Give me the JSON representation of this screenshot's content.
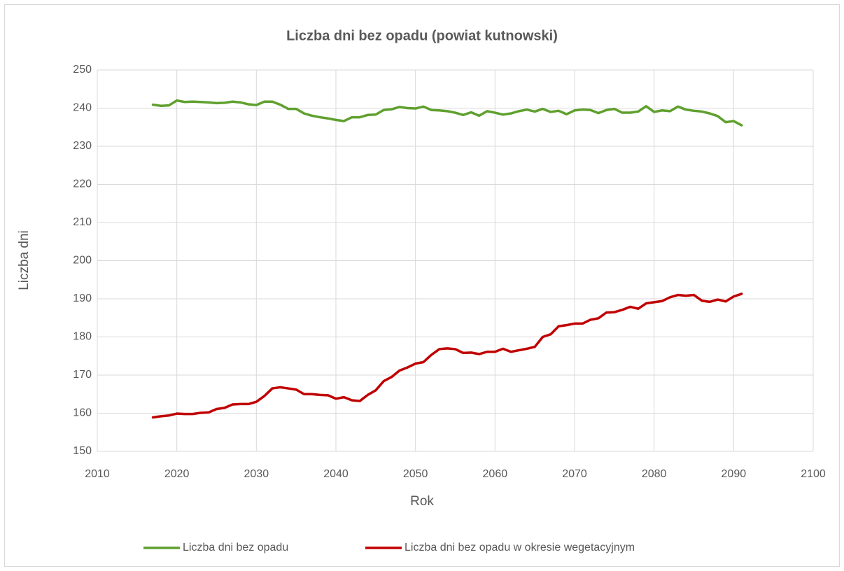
{
  "chart_data": {
    "type": "line",
    "title": "Liczba dni bez opadu (powiat kutnowski)",
    "x_label": "Rok",
    "y_label": "Liczba dni",
    "x": [
      2017,
      2018,
      2019,
      2020,
      2021,
      2022,
      2023,
      2024,
      2025,
      2026,
      2027,
      2028,
      2029,
      2030,
      2031,
      2032,
      2033,
      2034,
      2035,
      2036,
      2037,
      2038,
      2039,
      2040,
      2041,
      2042,
      2043,
      2044,
      2045,
      2046,
      2047,
      2048,
      2049,
      2050,
      2051,
      2052,
      2053,
      2054,
      2055,
      2056,
      2057,
      2058,
      2059,
      2060,
      2061,
      2062,
      2063,
      2064,
      2065,
      2066,
      2067,
      2068,
      2069,
      2070,
      2071,
      2072,
      2073,
      2074,
      2075,
      2076,
      2077,
      2078,
      2079,
      2080,
      2081,
      2082,
      2083,
      2084,
      2085,
      2086,
      2087,
      2088,
      2089,
      2090,
      2091
    ],
    "series": [
      {
        "name": "Liczba dni bez opadu",
        "color": "#5fa02e",
        "values": [
          240.9,
          240.6,
          240.7,
          242.0,
          241.6,
          241.7,
          241.6,
          241.5,
          241.3,
          241.4,
          241.7,
          241.5,
          241.0,
          240.8,
          241.7,
          241.7,
          240.9,
          239.8,
          239.8,
          238.6,
          238.0,
          237.6,
          237.3,
          236.9,
          236.6,
          237.6,
          237.6,
          238.2,
          238.3,
          239.5,
          239.7,
          240.3,
          240.0,
          239.9,
          240.4,
          239.5,
          239.4,
          239.2,
          238.8,
          238.2,
          238.9,
          238.0,
          239.2,
          238.8,
          238.3,
          238.6,
          239.2,
          239.6,
          239.1,
          239.8,
          239.0,
          239.3,
          238.4,
          239.4,
          239.6,
          239.5,
          238.7,
          239.5,
          239.8,
          238.8,
          238.8,
          239.1,
          240.5,
          239.0,
          239.4,
          239.2,
          240.4,
          239.6,
          239.3,
          239.1,
          238.6,
          237.9,
          236.3,
          236.6,
          235.5
        ]
      },
      {
        "name": "Liczba dni bez opadu w okresie wegetacyjnym",
        "color": "#c00000",
        "values": [
          158.9,
          159.2,
          159.4,
          159.9,
          159.8,
          159.8,
          160.1,
          160.2,
          161.1,
          161.4,
          162.3,
          162.4,
          162.4,
          163.0,
          164.5,
          166.5,
          166.8,
          166.5,
          166.2,
          165.0,
          165.0,
          164.8,
          164.7,
          163.8,
          164.2,
          163.4,
          163.2,
          164.8,
          166.0,
          168.4,
          169.5,
          171.2,
          172.0,
          173.0,
          173.4,
          175.3,
          176.8,
          177.0,
          176.8,
          175.8,
          175.9,
          175.5,
          176.1,
          176.1,
          176.9,
          176.1,
          176.5,
          176.9,
          177.4,
          180.0,
          180.7,
          182.8,
          183.1,
          183.5,
          183.5,
          184.5,
          184.9,
          186.4,
          186.5,
          187.1,
          187.9,
          187.4,
          188.8,
          189.1,
          189.4,
          190.4,
          191.0,
          190.8,
          191.0,
          189.5,
          189.2,
          189.8,
          189.3,
          190.6,
          191.3
        ]
      }
    ],
    "xlim": [
      2010,
      2100
    ],
    "xticks": [
      2010,
      2020,
      2030,
      2040,
      2050,
      2060,
      2070,
      2080,
      2090,
      2100
    ],
    "ylim": [
      150,
      250
    ],
    "yticks": [
      150,
      160,
      170,
      180,
      190,
      200,
      210,
      220,
      230,
      240,
      250
    ],
    "grid": true,
    "legend": "bottom"
  }
}
